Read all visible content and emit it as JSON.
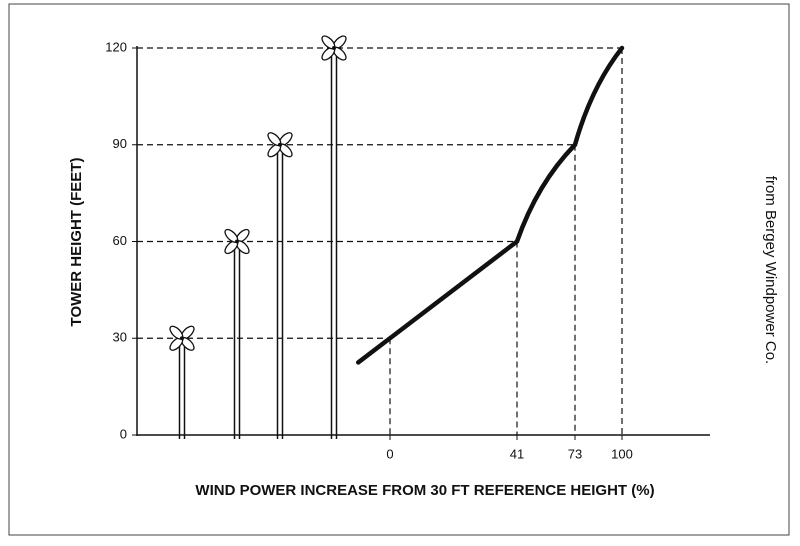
{
  "chart_data": {
    "type": "line",
    "y_label": "TOWER HEIGHT (FEET)",
    "x_label": "WIND POWER INCREASE FROM 30 FT REFERENCE HEIGHT (%)",
    "categories": [
      "0",
      "41",
      "73",
      "100"
    ],
    "values": [
      30,
      60,
      90,
      120
    ],
    "ylim": [
      0,
      120
    ],
    "yticks": [
      0,
      30,
      60,
      90,
      120
    ]
  },
  "credit": "from Bergey Windpower Co."
}
